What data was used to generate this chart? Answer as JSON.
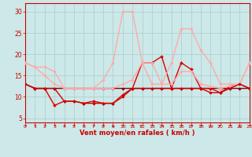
{
  "bg_color": "#cce8e8",
  "grid_color": "#aacccc",
  "xlabel": "Vent moyen/en rafales ( km/h )",
  "x_ticks": [
    0,
    1,
    2,
    3,
    4,
    5,
    6,
    7,
    8,
    9,
    10,
    11,
    12,
    13,
    14,
    15,
    16,
    17,
    18,
    19,
    20,
    21,
    22,
    23
  ],
  "ylim": [
    4,
    32
  ],
  "xlim": [
    0,
    23
  ],
  "yticks": [
    5,
    10,
    15,
    20,
    25,
    30
  ],
  "lines": [
    {
      "x": [
        0,
        1,
        2,
        3,
        4,
        5,
        6,
        7,
        8,
        9,
        10,
        11,
        12,
        13,
        14,
        15,
        16,
        17,
        18,
        19,
        20,
        21,
        22,
        23
      ],
      "y": [
        13,
        12,
        12,
        12,
        12,
        12,
        12,
        12,
        12,
        12,
        12,
        12,
        12,
        12,
        12,
        12,
        12,
        12,
        12,
        12,
        12,
        12,
        12,
        12
      ],
      "color": "#880000",
      "lw": 1.0,
      "marker": "D",
      "ms": 1.8
    },
    {
      "x": [
        0,
        1,
        2,
        3,
        4,
        5,
        6,
        7,
        8,
        9,
        10,
        11,
        12,
        13,
        14,
        15,
        16,
        17,
        18,
        19,
        20,
        21,
        22,
        23
      ],
      "y": [
        13,
        12,
        12,
        8,
        9,
        9,
        8.5,
        9,
        8.5,
        8.5,
        10.5,
        12,
        18,
        18,
        19.5,
        12,
        18,
        16.5,
        12,
        12,
        11,
        12.5,
        13,
        12
      ],
      "color": "#dd0000",
      "lw": 1.0,
      "marker": "D",
      "ms": 2.0
    },
    {
      "x": [
        0,
        1,
        2,
        3,
        4,
        5,
        6,
        7,
        8,
        9,
        10,
        11,
        12,
        13,
        14,
        15,
        16,
        17,
        18,
        19,
        20,
        21,
        22,
        23
      ],
      "y": [
        18,
        17,
        17,
        16,
        12,
        12,
        12,
        12,
        12,
        12,
        13,
        14,
        18,
        18,
        13,
        13,
        16,
        16,
        13,
        12.5,
        12,
        12.5,
        13,
        18
      ],
      "color": "#ffaaaa",
      "lw": 1.0,
      "marker": "D",
      "ms": 1.8
    },
    {
      "x": [
        0,
        1,
        2,
        3,
        4,
        5,
        6,
        7,
        8,
        9,
        10,
        11,
        12,
        13,
        14,
        15,
        16,
        17,
        18,
        19,
        20,
        21,
        22,
        23
      ],
      "y": [
        18,
        17,
        15,
        13,
        12,
        12,
        12,
        12,
        14,
        18,
        30,
        30,
        18,
        13,
        13,
        18,
        26,
        26,
        21,
        18,
        13,
        13,
        13,
        18
      ],
      "color": "#ffaaaa",
      "lw": 1.0,
      "marker": "D",
      "ms": 1.8
    },
    {
      "x": [
        0,
        1,
        2,
        3,
        4,
        5,
        6,
        7,
        8,
        9,
        10,
        11,
        12,
        13,
        14,
        15,
        16,
        17,
        18,
        19,
        20,
        21,
        22,
        23
      ],
      "y": [
        13,
        12,
        12,
        12,
        9,
        9,
        8.5,
        8.5,
        8.5,
        8.5,
        10,
        12,
        12,
        12,
        12,
        12,
        12,
        12,
        12,
        11,
        11,
        12,
        13,
        12
      ],
      "color": "#cc0000",
      "lw": 1.0,
      "marker": "D",
      "ms": 1.8
    }
  ],
  "wind_arrows": [
    45,
    45,
    45,
    45,
    45,
    45,
    45,
    45,
    45,
    90,
    45,
    45,
    0,
    45,
    45,
    45,
    45,
    45,
    45,
    90,
    135,
    45,
    90,
    45
  ]
}
